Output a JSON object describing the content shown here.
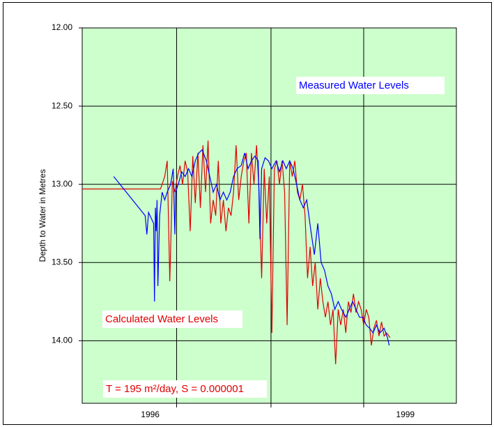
{
  "chart_data": {
    "type": "line",
    "ylabel": "Depth to Water in Metres",
    "annotations": [
      "Measured Water Levels",
      "Calculated Water Levels",
      "T = 195 m²/day, S = 0.000001"
    ],
    "xlim": [
      1995.2,
      1999.6
    ],
    "xticks": [
      {
        "value": 1996,
        "label": "1996"
      },
      {
        "value": 1999,
        "label": "1999"
      }
    ],
    "xgrid": [
      1996.31,
      1997.42,
      1998.51
    ],
    "ylim": [
      12,
      14.4
    ],
    "y_inverted": true,
    "yticks": [
      {
        "value": 12,
        "label": "12.00"
      },
      {
        "value": 12.5,
        "label": "12.50"
      },
      {
        "value": 13,
        "label": "13.00"
      },
      {
        "value": 13.5,
        "label": "13.50"
      },
      {
        "value": 14,
        "label": "14.00"
      }
    ],
    "grid": true,
    "background": "#ccffcc",
    "series": [
      {
        "color": "#0000ff",
        "x": [
          1995.57,
          1995.94,
          1995.96,
          1995.98,
          1996.04,
          1996.05,
          1996.06,
          1996.07,
          1996.08,
          1996.09,
          1996.11,
          1996.14,
          1996.17,
          1996.2,
          1996.24,
          1996.27,
          1996.29,
          1996.3,
          1996.34,
          1996.37,
          1996.41,
          1996.45,
          1996.49,
          1996.53,
          1996.57,
          1996.61,
          1996.66,
          1996.7,
          1996.74,
          1996.78,
          1996.82,
          1996.86,
          1996.9,
          1996.94,
          1996.98,
          1997.02,
          1997.07,
          1997.11,
          1997.15,
          1997.19,
          1997.23,
          1997.27,
          1997.29,
          1997.31,
          1997.35,
          1997.39,
          1997.43,
          1997.48,
          1997.52,
          1997.56,
          1997.6,
          1997.64,
          1997.68,
          1997.72,
          1997.76,
          1997.8,
          1997.84,
          1997.89,
          1997.93,
          1997.97,
          1998.01,
          1998.05,
          1998.09,
          1998.13,
          1998.17,
          1998.21,
          1998.25,
          1998.3,
          1998.34,
          1998.38,
          1998.42,
          1998.46,
          1998.5,
          1998.54,
          1998.58,
          1998.62,
          1998.66,
          1998.7,
          1998.75,
          1998.79,
          1998.81
        ],
        "values": [
          12.95,
          13.2,
          13.32,
          13.18,
          13.25,
          13.75,
          13.15,
          13.3,
          13.1,
          13.65,
          13.2,
          13.05,
          13.1,
          13.05,
          13.0,
          12.9,
          13.32,
          13.05,
          12.98,
          12.92,
          12.95,
          12.9,
          12.95,
          12.85,
          12.8,
          12.78,
          12.85,
          12.95,
          13.05,
          13.0,
          13.1,
          13.05,
          13.1,
          13.05,
          12.95,
          12.9,
          12.88,
          12.8,
          12.9,
          12.85,
          12.82,
          12.85,
          13.35,
          12.9,
          12.83,
          12.85,
          12.9,
          12.85,
          12.92,
          12.85,
          12.9,
          12.85,
          12.9,
          13.0,
          13.1,
          13.15,
          13.1,
          13.3,
          13.45,
          13.25,
          13.5,
          13.55,
          13.65,
          13.7,
          13.8,
          13.75,
          13.8,
          13.85,
          13.8,
          13.75,
          13.8,
          13.85,
          13.85,
          13.9,
          13.92,
          13.95,
          13.9,
          13.95,
          13.92,
          13.98,
          14.03
        ]
      },
      {
        "color": "#e00000",
        "x": [
          1995.2,
          1996.12,
          1996.14,
          1996.17,
          1996.2,
          1996.23,
          1996.26,
          1996.29,
          1996.32,
          1996.35,
          1996.38,
          1996.41,
          1996.44,
          1996.47,
          1996.5,
          1996.53,
          1996.56,
          1996.59,
          1996.62,
          1996.65,
          1996.68,
          1996.71,
          1996.74,
          1996.77,
          1996.8,
          1996.83,
          1996.86,
          1996.89,
          1996.92,
          1996.95,
          1996.98,
          1997.01,
          1997.04,
          1997.07,
          1997.1,
          1997.13,
          1997.16,
          1997.19,
          1997.22,
          1997.25,
          1997.28,
          1997.31,
          1997.34,
          1997.37,
          1997.4,
          1997.43,
          1997.46,
          1997.49,
          1997.52,
          1997.55,
          1997.58,
          1997.61,
          1997.64,
          1997.67,
          1997.7,
          1997.73,
          1997.76,
          1997.79,
          1997.82,
          1997.85,
          1997.88,
          1997.91,
          1997.94,
          1997.97,
          1998.0,
          1998.03,
          1998.06,
          1998.09,
          1998.12,
          1998.15,
          1998.18,
          1998.21,
          1998.24,
          1998.27,
          1998.3,
          1998.33,
          1998.36,
          1998.39,
          1998.42,
          1998.45,
          1998.48,
          1998.51,
          1998.54,
          1998.57,
          1998.6,
          1998.63,
          1998.66,
          1998.69,
          1998.72,
          1998.75,
          1998.78,
          1998.82
        ],
        "values": [
          13.03,
          13.03,
          13.0,
          12.95,
          12.85,
          13.62,
          12.98,
          13.05,
          12.95,
          12.88,
          13.0,
          12.85,
          12.92,
          13.3,
          12.82,
          13.12,
          12.8,
          13.15,
          12.75,
          13.05,
          12.72,
          13.25,
          13.1,
          13.2,
          12.85,
          13.25,
          13.1,
          13.3,
          13.15,
          13.2,
          13.05,
          12.75,
          13.1,
          12.95,
          12.85,
          12.8,
          13.25,
          12.8,
          13.0,
          12.75,
          13.05,
          13.6,
          12.9,
          13.25,
          12.95,
          13.95,
          12.9,
          12.85,
          13.0,
          12.85,
          13.05,
          13.9,
          12.85,
          12.95,
          12.85,
          13.05,
          13.1,
          13.0,
          13.2,
          13.6,
          13.4,
          13.65,
          13.5,
          13.8,
          13.6,
          13.75,
          13.85,
          13.75,
          13.9,
          13.8,
          14.15,
          13.8,
          13.9,
          13.8,
          13.95,
          13.75,
          13.82,
          13.7,
          13.82,
          13.75,
          13.8,
          13.9,
          13.8,
          13.85,
          14.03,
          13.92,
          13.87,
          13.97,
          13.88,
          13.97,
          13.95,
          13.98
        ]
      }
    ]
  }
}
